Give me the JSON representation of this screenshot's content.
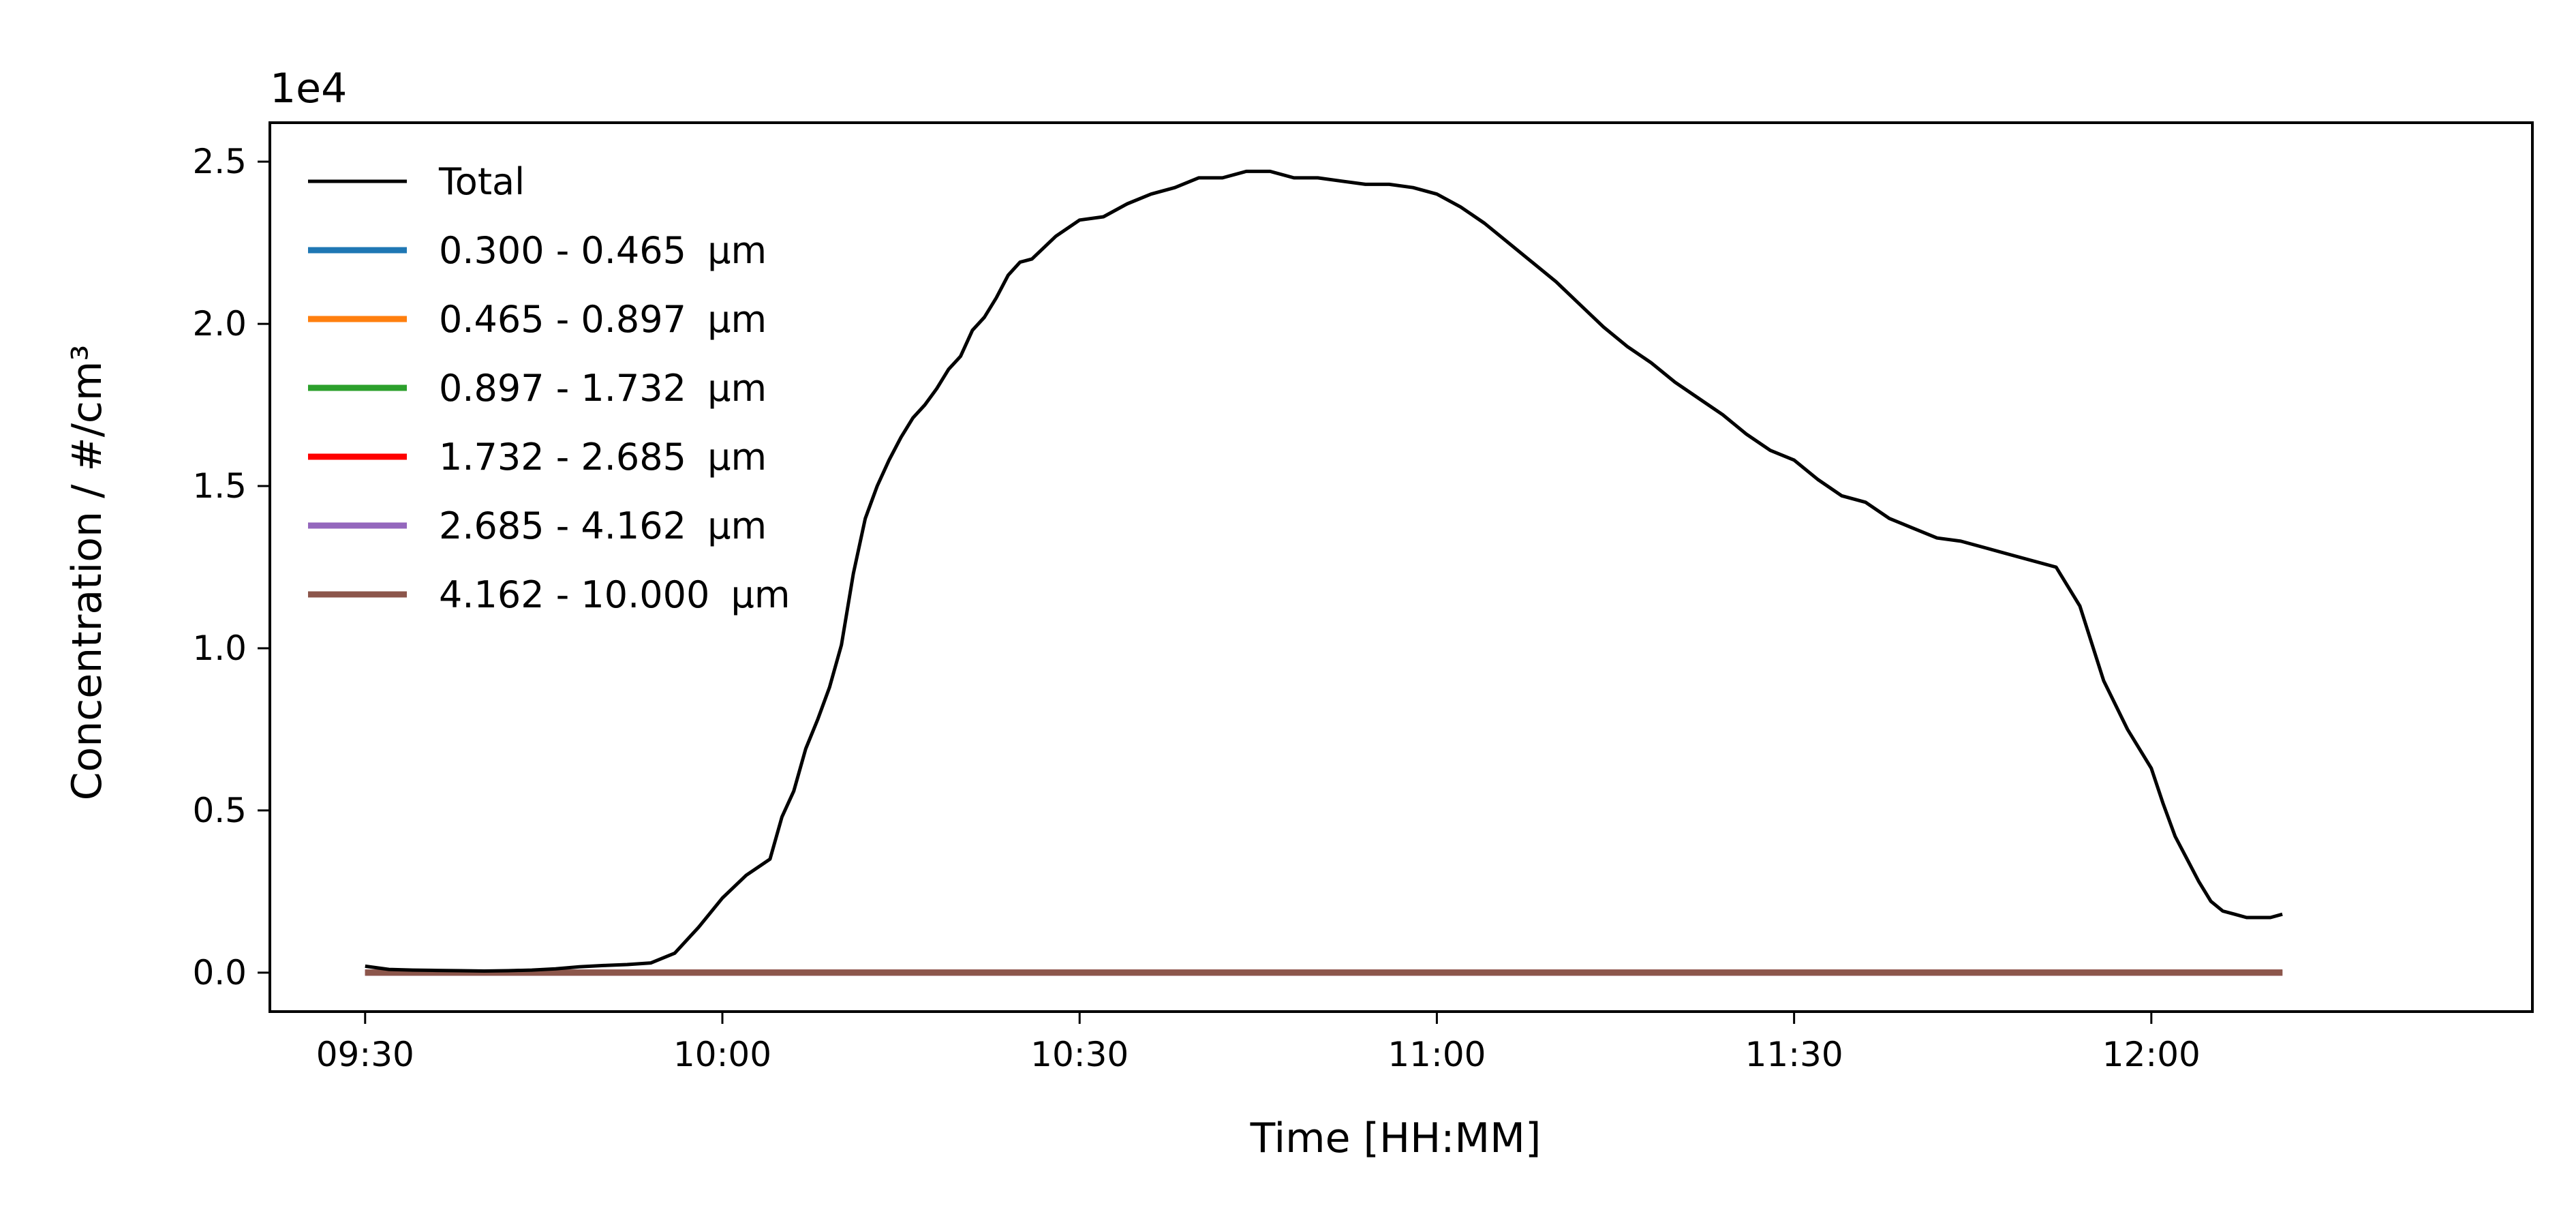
{
  "chart_data": {
    "type": "line",
    "offset_text": "1e4",
    "xlabel": "Time [HH:MM]",
    "ylabel": "Concentration / #/cm³",
    "x_ticks": [
      {
        "time": "09:30",
        "label": "09:30"
      },
      {
        "time": "10:00",
        "label": "10:00"
      },
      {
        "time": "10:30",
        "label": "10:30"
      },
      {
        "time": "11:00",
        "label": "11:00"
      },
      {
        "time": "11:30",
        "label": "11:30"
      },
      {
        "time": "12:00",
        "label": "12:00"
      }
    ],
    "xlim": [
      "09:22",
      "12:32"
    ],
    "y_ticks": [
      {
        "value": 0.0,
        "label": "0.0"
      },
      {
        "value": 0.5,
        "label": "0.5"
      },
      {
        "value": 1.0,
        "label": "1.0"
      },
      {
        "value": 1.5,
        "label": "1.5"
      },
      {
        "value": 2.0,
        "label": "2.0"
      },
      {
        "value": 2.5,
        "label": "2.5"
      }
    ],
    "ylim": [
      -0.12,
      2.62
    ],
    "y_scale_note": "values in units of 1e4 #/cm³",
    "legend_position": "upper left",
    "grid": false,
    "series": [
      {
        "name": "Total",
        "color": "#000000",
        "x": [
          "09:30",
          "09:32",
          "09:34",
          "09:36",
          "09:38",
          "09:40",
          "09:42",
          "09:44",
          "09:46",
          "09:48",
          "09:50",
          "09:52",
          "09:54",
          "09:56",
          "09:58",
          "10:00",
          "10:02",
          "10:04",
          "10:05",
          "10:06",
          "10:07",
          "10:08",
          "10:09",
          "10:10",
          "10:11",
          "10:12",
          "10:13",
          "10:14",
          "10:15",
          "10:16",
          "10:17",
          "10:18",
          "10:19",
          "10:20",
          "10:21",
          "10:22",
          "10:23",
          "10:24",
          "10:25",
          "10:26",
          "10:28",
          "10:30",
          "10:32",
          "10:34",
          "10:36",
          "10:38",
          "10:40",
          "10:42",
          "10:44",
          "10:46",
          "10:48",
          "10:50",
          "10:52",
          "10:54",
          "10:56",
          "10:58",
          "11:00",
          "11:02",
          "11:04",
          "11:06",
          "11:08",
          "11:10",
          "11:12",
          "11:14",
          "11:16",
          "11:18",
          "11:20",
          "11:22",
          "11:24",
          "11:26",
          "11:28",
          "11:30",
          "11:32",
          "11:34",
          "11:36",
          "11:38",
          "11:40",
          "11:42",
          "11:44",
          "11:46",
          "11:48",
          "11:50",
          "11:52",
          "11:54",
          "11:56",
          "11:58",
          "12:00",
          "12:01",
          "12:02",
          "12:03",
          "12:04",
          "12:05",
          "12:06",
          "12:07",
          "12:08",
          "12:09",
          "12:10",
          "12:11"
        ],
        "values": [
          0.02,
          0.01,
          0.008,
          0.007,
          0.006,
          0.005,
          0.006,
          0.008,
          0.012,
          0.018,
          0.022,
          0.025,
          0.03,
          0.06,
          0.14,
          0.23,
          0.3,
          0.35,
          0.48,
          0.56,
          0.69,
          0.78,
          0.88,
          1.01,
          1.23,
          1.4,
          1.5,
          1.58,
          1.65,
          1.71,
          1.75,
          1.8,
          1.86,
          1.9,
          1.98,
          2.02,
          2.08,
          2.15,
          2.19,
          2.2,
          2.27,
          2.32,
          2.33,
          2.37,
          2.4,
          2.42,
          2.45,
          2.45,
          2.47,
          2.47,
          2.45,
          2.45,
          2.44,
          2.43,
          2.43,
          2.42,
          2.4,
          2.36,
          2.31,
          2.25,
          2.19,
          2.13,
          2.06,
          1.99,
          1.93,
          1.88,
          1.82,
          1.77,
          1.72,
          1.66,
          1.61,
          1.58,
          1.52,
          1.47,
          1.45,
          1.4,
          1.37,
          1.34,
          1.33,
          1.31,
          1.29,
          1.27,
          1.25,
          1.13,
          0.9,
          0.75,
          0.63,
          0.52,
          0.42,
          0.35,
          0.28,
          0.22,
          0.19,
          0.18,
          0.17,
          0.17,
          0.17,
          0.18
        ]
      },
      {
        "name": "0.300 - 0.465 μm",
        "color": "#1f77b4",
        "x": [
          "09:30",
          "12:11"
        ],
        "values": [
          0.0,
          0.0
        ]
      },
      {
        "name": "0.465 - 0.897 μm",
        "color": "#ff7f0e",
        "x": [
          "09:30",
          "12:11"
        ],
        "values": [
          0.0,
          0.0
        ]
      },
      {
        "name": "0.897 - 1.732 μm",
        "color": "#2ca02c",
        "x": [
          "09:30",
          "12:11"
        ],
        "values": [
          0.0,
          0.0
        ]
      },
      {
        "name": "1.732 - 2.685 μm",
        "color": "#ff0000",
        "x": [
          "09:30",
          "12:11"
        ],
        "values": [
          0.0,
          0.0
        ]
      },
      {
        "name": "2.685 - 4.162 μm",
        "color": "#9467bd",
        "x": [
          "09:30",
          "12:11"
        ],
        "values": [
          0.0,
          0.0
        ]
      },
      {
        "name": "4.162 - 10.000 μm",
        "color": "#8c564b",
        "x": [
          "09:30",
          "12:11"
        ],
        "values": [
          0.0,
          0.0
        ]
      }
    ],
    "legend": [
      {
        "series": "Total",
        "label_prefix": "Total",
        "unit": ""
      },
      {
        "series": "0.300 - 0.465 μm",
        "label_prefix": "0.300 - 0.465 ",
        "unit": "μm"
      },
      {
        "series": "0.465 - 0.897 μm",
        "label_prefix": "0.465 - 0.897 ",
        "unit": "μm"
      },
      {
        "series": "0.897 - 1.732 μm",
        "label_prefix": "0.897 - 1.732 ",
        "unit": "μm"
      },
      {
        "series": "1.732 - 2.685 μm",
        "label_prefix": "1.732 - 2.685 ",
        "unit": "μm"
      },
      {
        "series": "2.685 - 4.162 μm",
        "label_prefix": "2.685 - 4.162 ",
        "unit": "μm"
      },
      {
        "series": "4.162 - 10.000 μm",
        "label_prefix": "4.162 - 10.000 ",
        "unit": "μm"
      }
    ]
  }
}
